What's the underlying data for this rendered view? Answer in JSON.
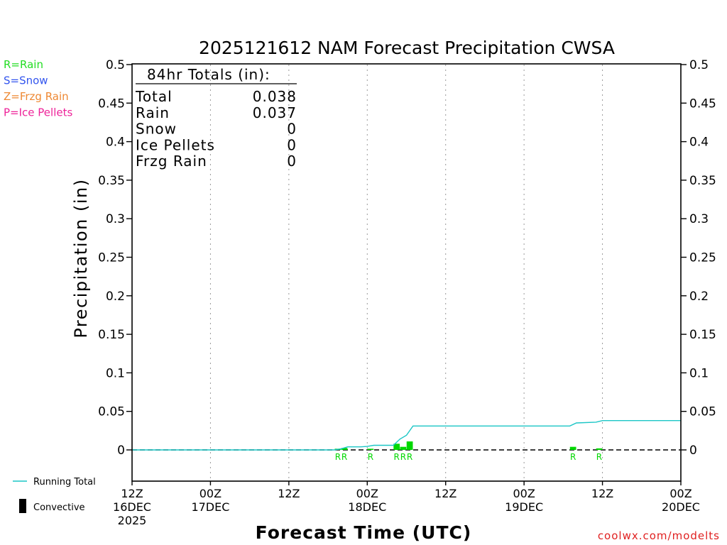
{
  "chart_data": {
    "type": "bar",
    "title": "2025121612 NAM Forecast Precipitation CWSA",
    "ylabel": "Precipitation (in)",
    "xlabel": "Forecast Time (UTC)",
    "ylim": [
      -0.04,
      0.5
    ],
    "xlim_hours": [
      0,
      84
    ],
    "y_ticks": [
      {
        "v": 0,
        "label": "0"
      },
      {
        "v": 0.05,
        "label": "0.05"
      },
      {
        "v": 0.1,
        "label": "0.1"
      },
      {
        "v": 0.15,
        "label": "0.15"
      },
      {
        "v": 0.2,
        "label": "0.2"
      },
      {
        "v": 0.25,
        "label": "0.25"
      },
      {
        "v": 0.3,
        "label": "0.3"
      },
      {
        "v": 0.35,
        "label": "0.35"
      },
      {
        "v": 0.4,
        "label": "0.4"
      },
      {
        "v": 0.45,
        "label": "0.45"
      },
      {
        "v": 0.5,
        "label": "0.5"
      }
    ],
    "x_ticks": [
      {
        "h": 0,
        "label": "12Z",
        "date": "16DEC",
        "year": "2025"
      },
      {
        "h": 12,
        "label": "00Z",
        "date": "17DEC",
        "year": ""
      },
      {
        "h": 24,
        "label": "12Z",
        "date": "",
        "year": ""
      },
      {
        "h": 36,
        "label": "00Z",
        "date": "18DEC",
        "year": ""
      },
      {
        "h": 48,
        "label": "12Z",
        "date": "",
        "year": ""
      },
      {
        "h": 60,
        "label": "00Z",
        "date": "19DEC",
        "year": ""
      },
      {
        "h": 72,
        "label": "12Z",
        "date": "",
        "year": ""
      },
      {
        "h": 84,
        "label": "00Z",
        "date": "20DEC",
        "year": ""
      }
    ],
    "gridlines_at_hours": [
      12,
      24,
      36,
      48,
      60,
      72
    ],
    "bars": [
      {
        "h": 32,
        "value": 0.0015,
        "type": "R"
      },
      {
        "h": 33,
        "value": 0.0025,
        "type": "R"
      },
      {
        "h": 37,
        "value": 0.0015,
        "type": "R"
      },
      {
        "h": 41,
        "value": 0.008,
        "type": "R"
      },
      {
        "h": 42,
        "value": 0.004,
        "type": "R"
      },
      {
        "h": 43,
        "value": 0.011,
        "type": "R"
      },
      {
        "h": 68,
        "value": 0.004,
        "type": "R"
      },
      {
        "h": 72,
        "value": 0.002,
        "type": "R"
      }
    ],
    "running_total": {
      "name": "Running Total",
      "x": [
        0,
        31,
        32,
        33,
        35,
        36,
        37,
        40,
        41,
        42,
        43,
        67,
        68,
        71,
        72,
        84
      ],
      "y": [
        0,
        0,
        0.0015,
        0.004,
        0.004,
        0.0045,
        0.006,
        0.006,
        0.014,
        0.019,
        0.031,
        0.031,
        0.035,
        0.036,
        0.038,
        0.038
      ]
    }
  },
  "totals": {
    "heading": "84hr Totals (in):",
    "rows": [
      {
        "label": "Total",
        "value": "0.038"
      },
      {
        "label": "Rain",
        "value": "0.037"
      },
      {
        "label": "Snow",
        "value": "0"
      },
      {
        "label": "Ice Pellets",
        "value": "0"
      },
      {
        "label": "Frzg Rain",
        "value": "0"
      }
    ]
  },
  "precip_legend": [
    {
      "text": "R=Rain",
      "color": "#22dd22"
    },
    {
      "text": "S=Snow",
      "color": "#3355ee"
    },
    {
      "text": "Z=Frzg Rain",
      "color": "#ee8833"
    },
    {
      "text": "P=Ice Pellets",
      "color": "#ee2299"
    }
  ],
  "line_legend": {
    "running_total": "Running Total",
    "convective": "Convective"
  },
  "colors": {
    "rain": "#00d800",
    "running_total": "#1cc6c6",
    "credit": "#e02020"
  },
  "credit": "coolwx.com/modelts"
}
